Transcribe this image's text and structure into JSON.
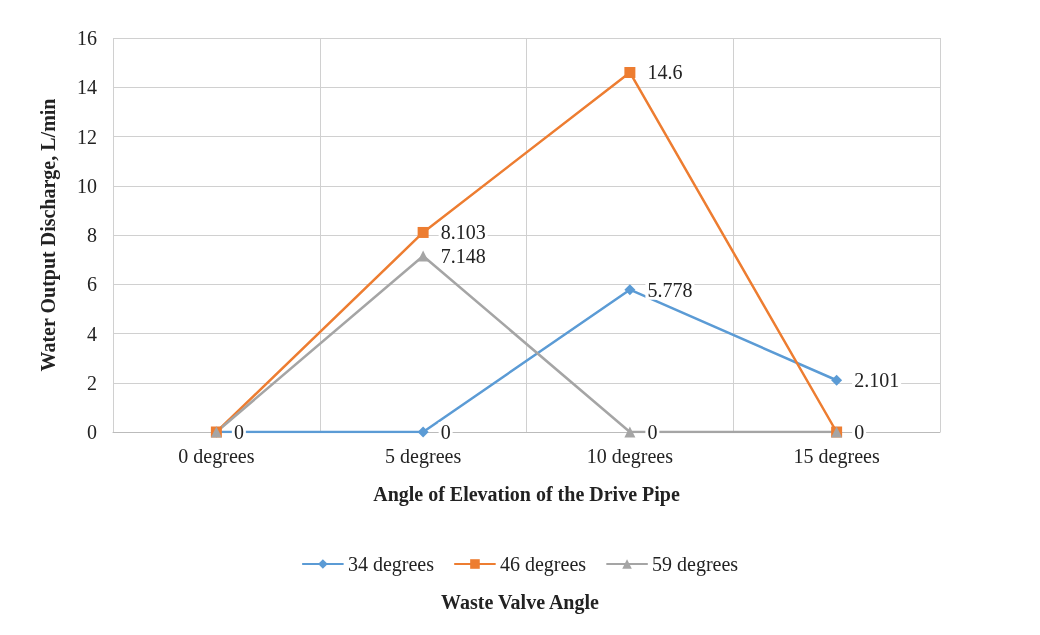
{
  "chart_data": {
    "type": "line",
    "xlabel": "Angle of Elevation of the Drive Pipe",
    "ylabel": "Water Output Discharge, L/min",
    "legend_title": "Waste Valve Angle",
    "categories": [
      "0 degrees",
      "5 degrees",
      "10 degrees",
      "15 degrees"
    ],
    "series": [
      {
        "name": "34 degrees",
        "color": "#5b9bd5",
        "marker": "diamond",
        "values": [
          0,
          0,
          5.778,
          2.101
        ],
        "value_labels": [
          "0",
          "0",
          "5.778",
          "2.101"
        ]
      },
      {
        "name": "46 degrees",
        "color": "#ed7d31",
        "marker": "square",
        "values": [
          0,
          8.103,
          14.6,
          0
        ],
        "value_labels": [
          null,
          "8.103",
          "14.6",
          "0"
        ]
      },
      {
        "name": "59 degrees",
        "color": "#a5a5a5",
        "marker": "triangle",
        "values": [
          0,
          7.148,
          0,
          0
        ],
        "value_labels": [
          null,
          "7.148",
          "0",
          null
        ]
      }
    ],
    "ylim": [
      0,
      16
    ],
    "yticks": [
      0,
      2,
      4,
      6,
      8,
      10,
      12,
      14,
      16
    ],
    "grid": true,
    "legend": "bottom"
  }
}
